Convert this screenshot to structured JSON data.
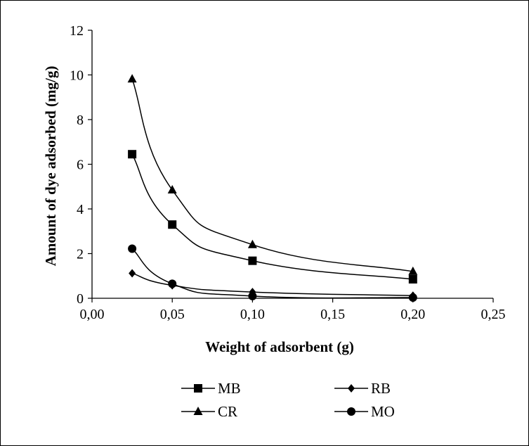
{
  "chart_data": {
    "type": "line",
    "title": "",
    "xlabel": "Weight of adsorbent (g)",
    "ylabel": "Amount of dye adsorbed (mg/g)",
    "xlim": [
      0,
      0.25
    ],
    "ylim": [
      0,
      12
    ],
    "x_ticks": [
      "0,00",
      "0,05",
      "0,10",
      "0,15",
      "0,20",
      "0,25"
    ],
    "y_ticks": [
      "0",
      "2",
      "4",
      "6",
      "8",
      "10",
      "12"
    ],
    "grid": false,
    "legend_position": "bottom",
    "series": [
      {
        "name": "MB",
        "marker": "square",
        "x": [
          0.025,
          0.05,
          0.1,
          0.2
        ],
        "y": [
          6.45,
          3.3,
          1.68,
          0.85
        ]
      },
      {
        "name": "RB",
        "marker": "diamond",
        "x": [
          0.025,
          0.05,
          0.1,
          0.2
        ],
        "y": [
          1.12,
          0.58,
          0.28,
          0.12
        ]
      },
      {
        "name": "CR",
        "marker": "triangle",
        "x": [
          0.025,
          0.05,
          0.1,
          0.2
        ],
        "y": [
          9.82,
          4.85,
          2.4,
          1.2
        ]
      },
      {
        "name": "MO",
        "marker": "circle",
        "x": [
          0.025,
          0.05,
          0.1,
          0.2
        ],
        "y": [
          2.22,
          0.65,
          0.1,
          0.03
        ]
      }
    ],
    "colors": {
      "line": "#000000",
      "marker": "#000000"
    }
  }
}
